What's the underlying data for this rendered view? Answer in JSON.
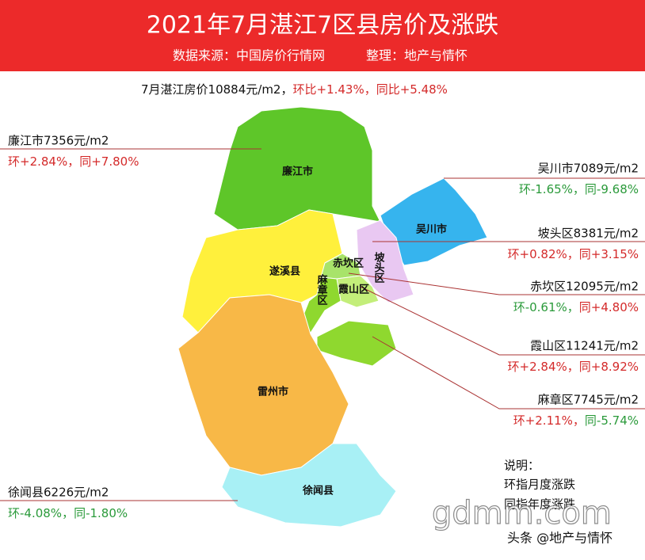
{
  "header": {
    "title": "2021年7月湛江7区县房价及涨跌",
    "source": "数据来源：中国房价行情网",
    "editor": "整理：地产与情怀"
  },
  "summary": {
    "price": "7月湛江房价10884元/m2，",
    "mom": "环比+1.43%，",
    "yoy": "同比+5.48%"
  },
  "regions": [
    {
      "name": "廉江市",
      "price": "廉江市7356元/m2",
      "mom": "环+2.84%，",
      "yoy": "同+7.80%"
    },
    {
      "name": "吴川市",
      "price": "吴川市7089元/m2",
      "mom": "环-1.65%，",
      "yoy": "同-9.68%"
    },
    {
      "name": "坡头区",
      "price": "坡头区8381元/m2",
      "mom": "环+0.82%，",
      "yoy": "同+3.15%"
    },
    {
      "name": "赤坎区",
      "price": "赤坎区12095元/m2",
      "mom": "环-0.61%，",
      "yoy": "同+4.80%"
    },
    {
      "name": "霞山区",
      "price": "霞山区11241元/m2",
      "mom": "环+2.84%，",
      "yoy": "同+8.92%"
    },
    {
      "name": "麻章区",
      "price": "麻章区7745元/m2",
      "mom": "环+2.11%，",
      "yoy": "同-5.74%"
    },
    {
      "name": "徐闻县",
      "price": "徐闻县6226元/m2",
      "mom": "环-4.08%，",
      "yoy": "同-1.80%"
    }
  ],
  "other_areas": [
    "遂溪县",
    "雷州市"
  ],
  "note": {
    "title": "说明：",
    "lines": [
      "环指月度涨跌",
      "同指年度涨跌"
    ]
  },
  "watermark": "gdmm.com",
  "credit": "头条 @地产与情怀"
}
